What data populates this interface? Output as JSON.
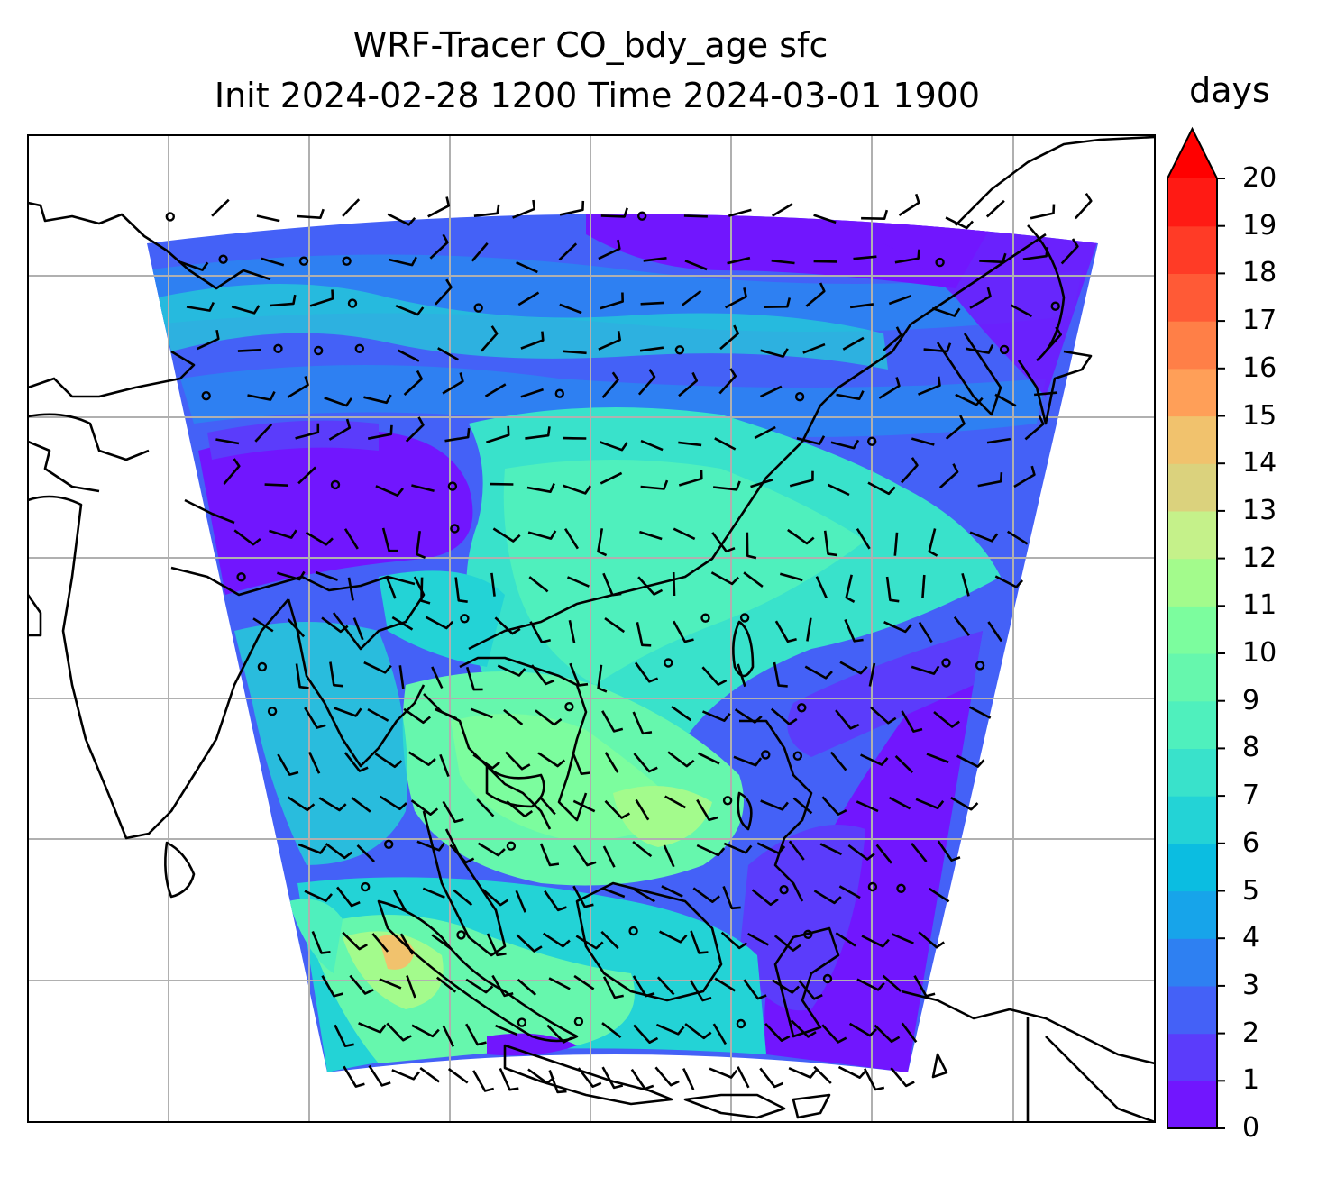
{
  "title_line1": "WRF-Tracer CO_bdy_age sfc",
  "title_line2": "Init 2024-02-28 1200 Time 2024-03-01 1900",
  "colorbar": {
    "unit": "days",
    "ticks": [
      "0",
      "1",
      "2",
      "3",
      "4",
      "5",
      "6",
      "7",
      "8",
      "9",
      "10",
      "11",
      "12",
      "13",
      "14",
      "15",
      "16",
      "17",
      "18",
      "19",
      "20"
    ],
    "extend": "max",
    "colors": [
      "#7116fe",
      "#5b3cfb",
      "#4461f7",
      "#2e80f2",
      "#17a4ea",
      "#0bbde1",
      "#23d3d6",
      "#39e2cb",
      "#4ff0bd",
      "#66f7ad",
      "#7cfd9e",
      "#a3fb8c",
      "#c5f18a",
      "#dbd27d",
      "#f1c26d",
      "#ff9f58",
      "#ff7f47",
      "#ff5a36",
      "#ff3b26",
      "#ff1a14"
    ],
    "over_color": "#ff0000"
  },
  "map": {
    "field": "CO_bdy_age",
    "level": "sfc",
    "colors": {
      "coastline": "#000000",
      "gridline": "#b0b0b0",
      "barb": "#000000"
    }
  }
}
